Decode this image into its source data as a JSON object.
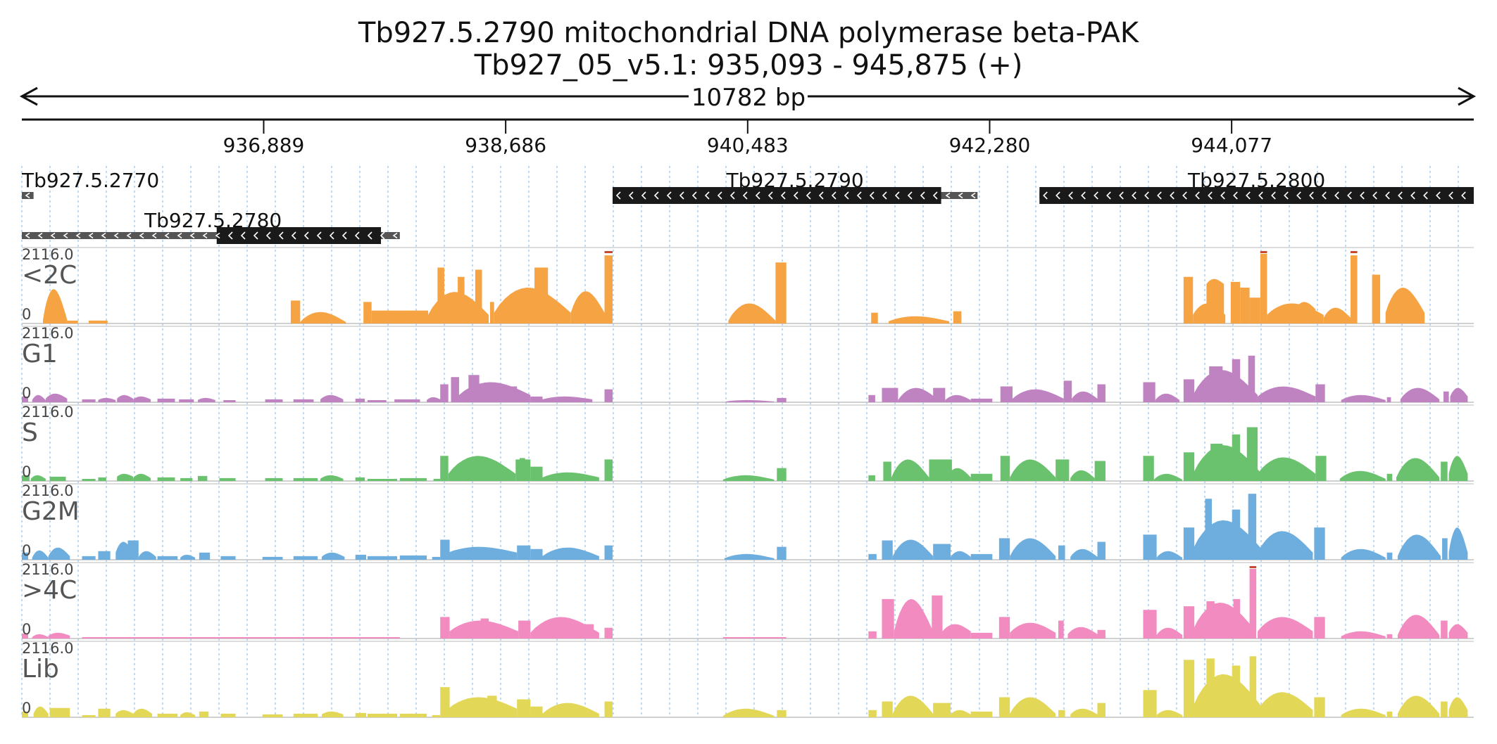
{
  "header": {
    "title": "Tb927.5.2790  mitochondrial DNA polymerase beta-PAK",
    "location": "Tb927_05_v5.1: 935,093 - 945,875 (+)",
    "span_label": "10782 bp"
  },
  "ruler": {
    "start": 935093,
    "end": 945875,
    "ticks": [
      {
        "pos": 936889,
        "label": "936,889"
      },
      {
        "pos": 938686,
        "label": "938,686"
      },
      {
        "pos": 940483,
        "label": "940,483"
      },
      {
        "pos": 942280,
        "label": "942,280"
      },
      {
        "pos": 944077,
        "label": "944,077"
      }
    ]
  },
  "genes": [
    {
      "name": "Tb927.5.2770",
      "row": 0,
      "start": 935093,
      "end": 935180,
      "cds": [],
      "strand": "-"
    },
    {
      "name": "Tb927.5.2790",
      "row": 0,
      "start": 939480,
      "end": 942190,
      "cds": [
        [
          939480,
          941920
        ]
      ],
      "strand": "-"
    },
    {
      "name": "Tb927.5.2800",
      "row": 0,
      "start": 942650,
      "end": 945875,
      "cds": [
        [
          942650,
          945875
        ]
      ],
      "strand": "-"
    },
    {
      "name": "Tb927.5.2780",
      "row": 1,
      "start": 935093,
      "end": 937900,
      "cds": [
        [
          936540,
          937760
        ]
      ],
      "strand": "-"
    }
  ],
  "tracks": [
    {
      "name": "<2C",
      "max_label": "2116.0",
      "min_label": "0",
      "color": "#F6A443",
      "over_color": "#C84A2E",
      "profile": "c2"
    },
    {
      "name": "G1",
      "max_label": "2116.0",
      "min_label": "0",
      "color": "#C083C2",
      "profile": "g1"
    },
    {
      "name": "S",
      "max_label": "2116.0",
      "min_label": "0",
      "color": "#6BC26E",
      "profile": "s"
    },
    {
      "name": "G2M",
      "max_label": "2116.0",
      "min_label": "0",
      "color": "#6EAEDE",
      "profile": "g2m"
    },
    {
      "name": ">4C",
      "max_label": "2116.0",
      "min_label": "0",
      "color": "#F28BBF",
      "over_color": "#C84A2E",
      "profile": "c4"
    },
    {
      "name": "Lib",
      "max_label": "2116.0",
      "min_label": "0",
      "color": "#E3D757",
      "profile": "lib"
    }
  ]
}
